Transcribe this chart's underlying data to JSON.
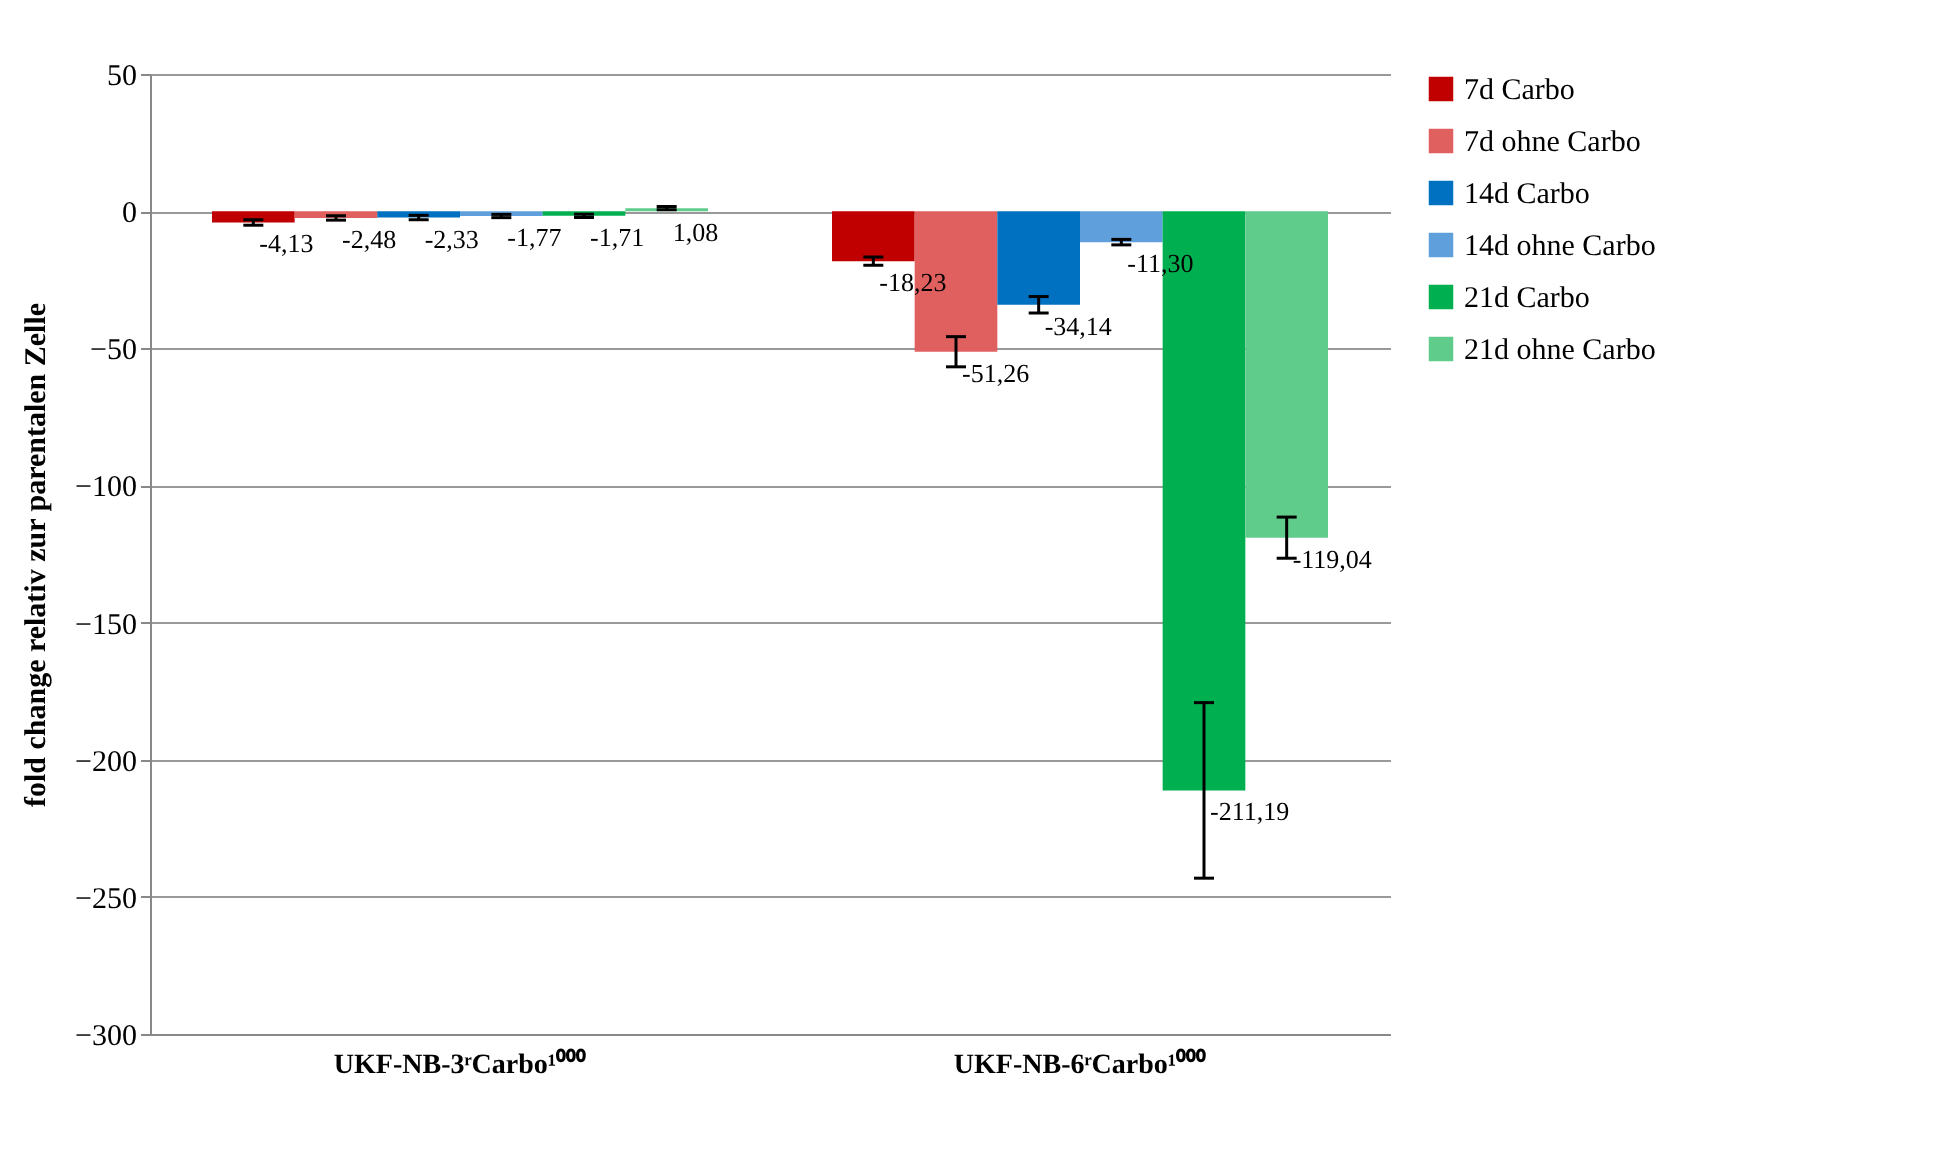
{
  "chart_data": {
    "type": "bar",
    "ylabel": "fold change relativ zur parentalen Zelle",
    "categories": [
      "UKF-NB-3ʳCarbo¹⁰⁰⁰",
      "UKF-NB-6ʳCarbo¹⁰⁰⁰"
    ],
    "series": [
      {
        "name": "7d Carbo",
        "color": "#c00000",
        "values": [
          -4.13,
          -18.23
        ],
        "errors": [
          1,
          1.5
        ],
        "value_labels": [
          "-4,13",
          "-18,23"
        ]
      },
      {
        "name": "7d ohne Carbo",
        "color": "#e06060",
        "values": [
          -2.48,
          -51.26
        ],
        "errors": [
          0.8,
          5.5
        ],
        "value_labels": [
          "-2,48",
          "-51,26"
        ]
      },
      {
        "name": "14d Carbo",
        "color": "#0070c0",
        "values": [
          -2.33,
          -34.14
        ],
        "errors": [
          0.8,
          3
        ],
        "value_labels": [
          "-2,33",
          "-34,14"
        ]
      },
      {
        "name": "14d ohne Carbo",
        "color": "#5fa0dc",
        "values": [
          -1.77,
          -11.3
        ],
        "errors": [
          0.6,
          1
        ],
        "value_labels": [
          "-1,77",
          "-11,30"
        ]
      },
      {
        "name": "21d Carbo",
        "color": "#00b050",
        "values": [
          -1.71,
          -211.19
        ],
        "errors": [
          0.6,
          32
        ],
        "value_labels": [
          "-1,71",
          "-211,19"
        ]
      },
      {
        "name": "21d ohne Carbo",
        "color": "#60cc8c",
        "values": [
          1.08,
          -119.04
        ],
        "errors": [
          0.6,
          7.5
        ],
        "value_labels": [
          "1,08",
          "-119,04"
        ]
      }
    ],
    "ylim": [
      -300,
      50
    ],
    "yticks": [
      -300,
      -250,
      -200,
      -150,
      -100,
      -50,
      0,
      50
    ],
    "grid": "y",
    "legend": "right"
  }
}
